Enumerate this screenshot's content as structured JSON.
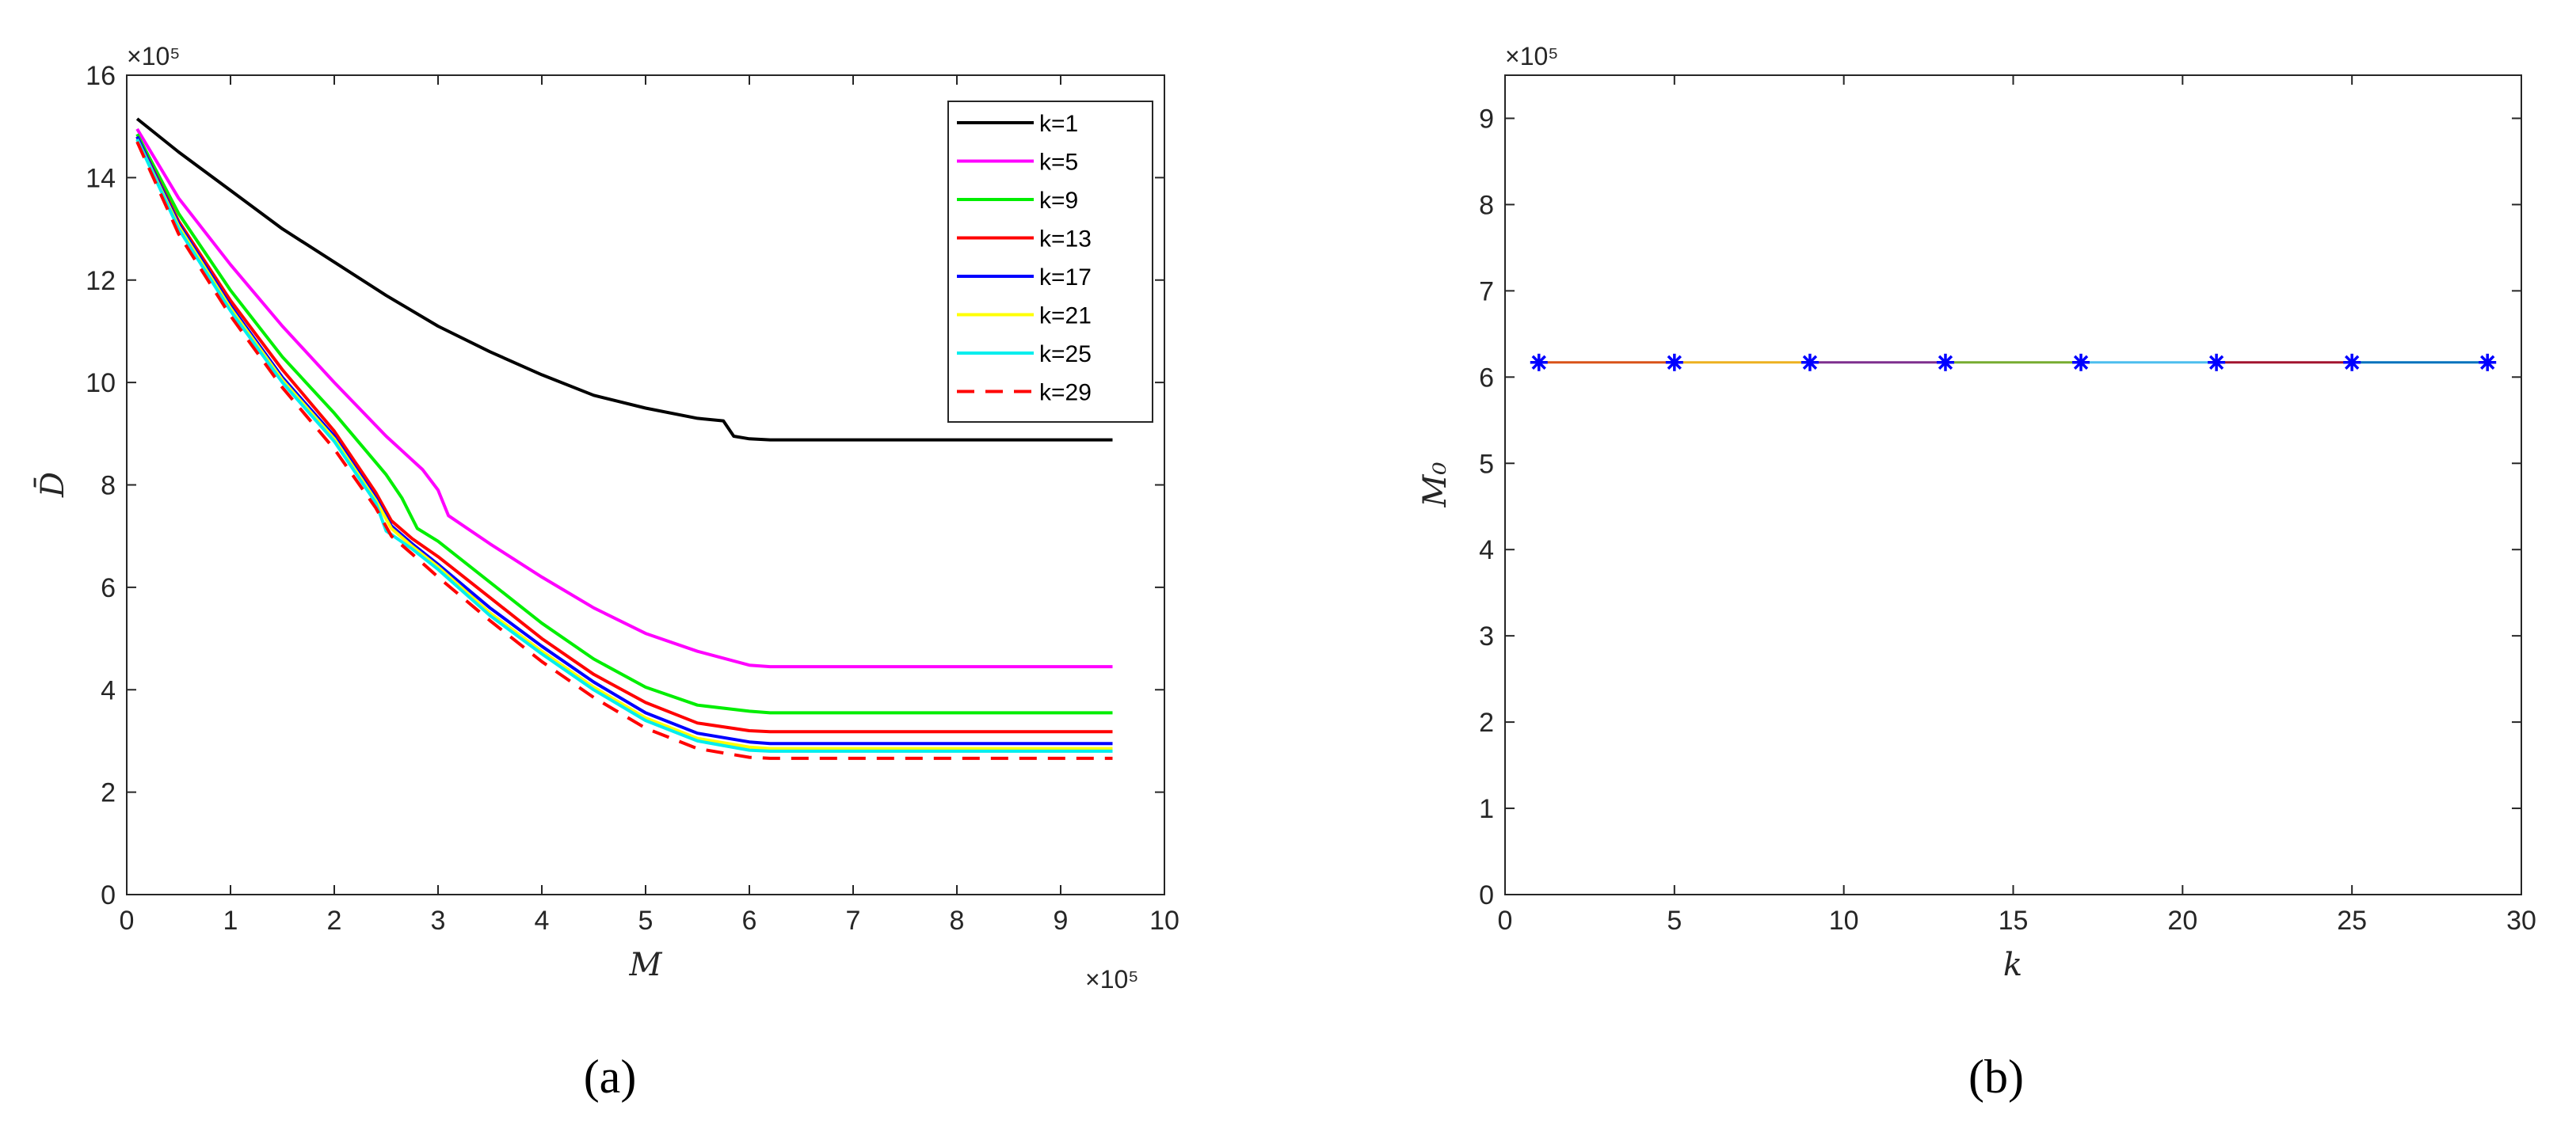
{
  "chart_data": [
    {
      "type": "line",
      "caption": "(a)",
      "xlabel": "M",
      "ylabel": "D̄",
      "x_exponent_label": "×10⁵",
      "y_exponent_label": "×10⁵",
      "xlim": [
        0,
        10
      ],
      "ylim": [
        0,
        16
      ],
      "xticks": [
        "0",
        "1",
        "2",
        "3",
        "4",
        "5",
        "6",
        "7",
        "8",
        "9",
        "10"
      ],
      "yticks": [
        "0",
        "2",
        "4",
        "6",
        "8",
        "10",
        "12",
        "14",
        "16"
      ],
      "legend_position": "top-right",
      "grid": false,
      "series": [
        {
          "name": "k=1",
          "color": "#000000",
          "dash": false,
          "points": [
            [
              0.1,
              15.15
            ],
            [
              0.5,
              14.5
            ],
            [
              1,
              13.75
            ],
            [
              1.5,
              13.0
            ],
            [
              2,
              12.35
            ],
            [
              2.5,
              11.7
            ],
            [
              3,
              11.1
            ],
            [
              3.5,
              10.6
            ],
            [
              4,
              10.15
            ],
            [
              4.5,
              9.75
            ],
            [
              5,
              9.5
            ],
            [
              5.5,
              9.3
            ],
            [
              5.75,
              9.25
            ],
            [
              5.85,
              8.95
            ],
            [
              6,
              8.9
            ],
            [
              6.2,
              8.88
            ],
            [
              7,
              8.88
            ],
            [
              8,
              8.88
            ],
            [
              9.5,
              8.88
            ]
          ]
        },
        {
          "name": "k=5",
          "color": "#ff00ff",
          "dash": false,
          "points": [
            [
              0.1,
              14.95
            ],
            [
              0.5,
              13.6
            ],
            [
              1,
              12.3
            ],
            [
              1.5,
              11.1
            ],
            [
              2,
              10.0
            ],
            [
              2.5,
              8.95
            ],
            [
              2.85,
              8.3
            ],
            [
              3.0,
              7.9
            ],
            [
              3.1,
              7.4
            ],
            [
              3.5,
              6.85
            ],
            [
              4,
              6.2
            ],
            [
              4.5,
              5.6
            ],
            [
              5,
              5.1
            ],
            [
              5.5,
              4.75
            ],
            [
              6,
              4.48
            ],
            [
              6.2,
              4.45
            ],
            [
              7,
              4.45
            ],
            [
              8,
              4.45
            ],
            [
              9.5,
              4.45
            ]
          ]
        },
        {
          "name": "k=9",
          "color": "#00ee00",
          "dash": false,
          "points": [
            [
              0.1,
              14.85
            ],
            [
              0.5,
              13.3
            ],
            [
              1,
              11.8
            ],
            [
              1.5,
              10.5
            ],
            [
              2,
              9.4
            ],
            [
              2.5,
              8.2
            ],
            [
              2.65,
              7.75
            ],
            [
              2.8,
              7.15
            ],
            [
              3,
              6.9
            ],
            [
              3.5,
              6.1
            ],
            [
              4,
              5.3
            ],
            [
              4.5,
              4.6
            ],
            [
              5,
              4.05
            ],
            [
              5.5,
              3.7
            ],
            [
              6,
              3.58
            ],
            [
              6.2,
              3.55
            ],
            [
              7,
              3.55
            ],
            [
              8,
              3.55
            ],
            [
              9.5,
              3.55
            ]
          ]
        },
        {
          "name": "k=13",
          "color": "#ff0000",
          "dash": false,
          "points": [
            [
              0.1,
              14.8
            ],
            [
              0.5,
              13.15
            ],
            [
              1,
              11.6
            ],
            [
              1.5,
              10.25
            ],
            [
              2,
              9.05
            ],
            [
              2.4,
              7.85
            ],
            [
              2.55,
              7.3
            ],
            [
              2.75,
              6.95
            ],
            [
              3,
              6.6
            ],
            [
              3.5,
              5.8
            ],
            [
              4,
              5.0
            ],
            [
              4.5,
              4.3
            ],
            [
              5,
              3.75
            ],
            [
              5.5,
              3.35
            ],
            [
              6,
              3.2
            ],
            [
              6.2,
              3.18
            ],
            [
              7,
              3.18
            ],
            [
              8,
              3.18
            ],
            [
              9.5,
              3.18
            ]
          ]
        },
        {
          "name": "k=17",
          "color": "#0000ff",
          "dash": false,
          "points": [
            [
              0.1,
              14.8
            ],
            [
              0.5,
              13.1
            ],
            [
              1,
              11.5
            ],
            [
              1.5,
              10.1
            ],
            [
              2,
              8.95
            ],
            [
              2.4,
              7.75
            ],
            [
              2.55,
              7.2
            ],
            [
              2.75,
              6.85
            ],
            [
              3,
              6.45
            ],
            [
              3.5,
              5.6
            ],
            [
              4,
              4.85
            ],
            [
              4.5,
              4.15
            ],
            [
              5,
              3.55
            ],
            [
              5.5,
              3.15
            ],
            [
              6,
              2.98
            ],
            [
              6.2,
              2.95
            ],
            [
              7,
              2.95
            ],
            [
              8,
              2.95
            ],
            [
              9.5,
              2.95
            ]
          ]
        },
        {
          "name": "k=21",
          "color": "#ffff00",
          "dash": false,
          "points": [
            [
              0.1,
              14.75
            ],
            [
              0.5,
              13.05
            ],
            [
              1,
              11.45
            ],
            [
              1.5,
              10.05
            ],
            [
              2,
              8.9
            ],
            [
              2.4,
              7.7
            ],
            [
              2.55,
              7.15
            ],
            [
              2.75,
              6.8
            ],
            [
              3,
              6.4
            ],
            [
              3.5,
              5.5
            ],
            [
              4,
              4.75
            ],
            [
              4.5,
              4.05
            ],
            [
              5,
              3.45
            ],
            [
              5.5,
              3.05
            ],
            [
              6,
              2.88
            ],
            [
              6.2,
              2.85
            ],
            [
              7,
              2.85
            ],
            [
              8,
              2.85
            ],
            [
              9.5,
              2.85
            ]
          ]
        },
        {
          "name": "k=25",
          "color": "#00eeee",
          "dash": false,
          "points": [
            [
              0.1,
              14.75
            ],
            [
              0.5,
              13.0
            ],
            [
              1,
              11.4
            ],
            [
              1.5,
              10.0
            ],
            [
              2,
              8.85
            ],
            [
              2.4,
              7.65
            ],
            [
              2.5,
              7.1
            ],
            [
              2.75,
              6.75
            ],
            [
              3,
              6.35
            ],
            [
              3.5,
              5.45
            ],
            [
              4,
              4.7
            ],
            [
              4.5,
              4.0
            ],
            [
              5,
              3.4
            ],
            [
              5.5,
              3.0
            ],
            [
              6,
              2.82
            ],
            [
              6.2,
              2.8
            ],
            [
              7,
              2.8
            ],
            [
              8,
              2.8
            ],
            [
              9.5,
              2.8
            ]
          ]
        },
        {
          "name": "k=29",
          "color": "#ff0000",
          "dash": true,
          "points": [
            [
              0.1,
              14.7
            ],
            [
              0.5,
              12.9
            ],
            [
              1,
              11.3
            ],
            [
              1.5,
              9.9
            ],
            [
              2,
              8.7
            ],
            [
              2.4,
              7.55
            ],
            [
              2.55,
              7.0
            ],
            [
              2.75,
              6.65
            ],
            [
              3,
              6.2
            ],
            [
              3.5,
              5.35
            ],
            [
              4,
              4.55
            ],
            [
              4.5,
              3.85
            ],
            [
              5,
              3.25
            ],
            [
              5.5,
              2.85
            ],
            [
              6,
              2.68
            ],
            [
              6.2,
              2.66
            ],
            [
              7,
              2.66
            ],
            [
              8,
              2.66
            ],
            [
              9.5,
              2.66
            ]
          ]
        }
      ]
    },
    {
      "type": "line",
      "caption": "(b)",
      "xlabel": "k",
      "ylabel": "M₀",
      "y_exponent_label": "×10⁵",
      "xlim": [
        0,
        30
      ],
      "ylim": [
        0,
        9.5
      ],
      "xticks": [
        "0",
        "5",
        "10",
        "15",
        "20",
        "25",
        "30"
      ],
      "yticks": [
        "0",
        "1",
        "2",
        "3",
        "4",
        "5",
        "6",
        "7",
        "8",
        "9"
      ],
      "grid": false,
      "series": [
        {
          "marker_color": "#0000ff",
          "x": [
            1,
            5,
            9,
            13,
            17,
            21,
            25,
            29
          ],
          "y": [
            6.17,
            6.17,
            6.17,
            6.17,
            6.17,
            6.17,
            6.17,
            6.17
          ],
          "segment_colors": [
            "#d95319",
            "#edb120",
            "#7e2f8e",
            "#77ac30",
            "#4dbeee",
            "#a2142f",
            "#0072bd"
          ]
        }
      ]
    }
  ]
}
